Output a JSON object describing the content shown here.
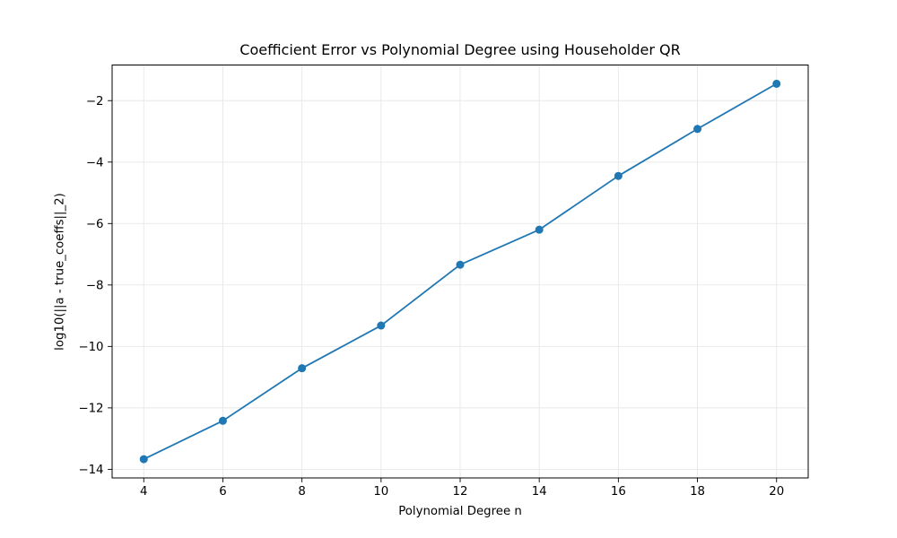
{
  "colors": {
    "line": "#1f77b4",
    "marker": "#1f77b4",
    "grid": "#e7e7e7",
    "axis": "#000000",
    "background": "#ffffff"
  },
  "chart_data": {
    "type": "line",
    "title": "Coefficient Error vs Polynomial Degree using Householder QR",
    "xlabel": "Polynomial Degree n",
    "ylabel": "log10(||a - true_coeffs||_2)",
    "x": [
      4,
      6,
      8,
      10,
      12,
      14,
      16,
      18,
      20
    ],
    "y": [
      -13.67,
      -12.42,
      -10.71,
      -9.32,
      -7.34,
      -6.2,
      -4.45,
      -2.92,
      -1.45
    ],
    "xlim": [
      3.2,
      20.8
    ],
    "ylim": [
      -14.28,
      -0.84
    ],
    "xticks": [
      4,
      6,
      8,
      10,
      12,
      14,
      16,
      18,
      20
    ],
    "yticks": [
      -14,
      -12,
      -10,
      -8,
      -6,
      -4,
      -2
    ],
    "grid": true,
    "legend": false,
    "marker": "circle",
    "line_width": 1.8,
    "marker_radius": 4.5
  }
}
